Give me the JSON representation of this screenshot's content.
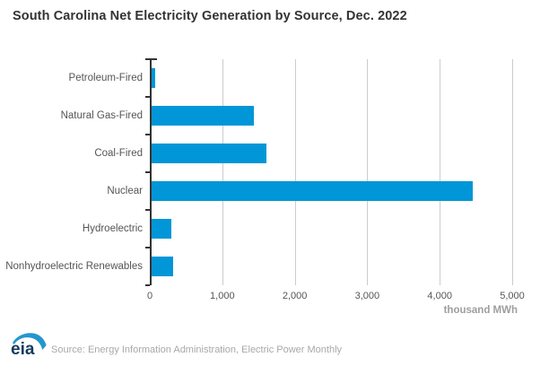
{
  "title": "South Carolina Net Electricity Generation by Source, Dec. 2022",
  "chart_data": {
    "type": "bar",
    "orientation": "horizontal",
    "title": "South Carolina Net Electricity Generation by Source, Dec. 2022",
    "categories": [
      "Petroleum-Fired",
      "Natural Gas-Fired",
      "Coal-Fired",
      "Nuclear",
      "Hydroelectric",
      "Nonhydroelectric Renewables"
    ],
    "values": [
      50,
      1410,
      1590,
      4430,
      270,
      295
    ],
    "xlabel": "thousand MWh",
    "ylabel": "",
    "xlim": [
      0,
      5000
    ],
    "xticks": [
      0,
      1000,
      2000,
      3000,
      4000,
      5000
    ],
    "xtick_labels": [
      "0",
      "1,000",
      "2,000",
      "3,000",
      "4,000",
      "5,000"
    ],
    "grid": "vertical-gridlines-on",
    "legend": "none",
    "bar_color": "#0096D7"
  },
  "colors": {
    "bar": "#0096D7",
    "axis": "#333333",
    "gridline": "#cccccc",
    "title_text": "#333333",
    "label_text": "#555555",
    "unit_text": "#9e9e9e",
    "source_text": "#a8a8a8",
    "logo_navy": "#173a5e",
    "logo_blue": "#2496cf"
  },
  "footer": {
    "logo_text": "eia",
    "source": "Source: Energy Information Administration, Electric Power Monthly"
  }
}
